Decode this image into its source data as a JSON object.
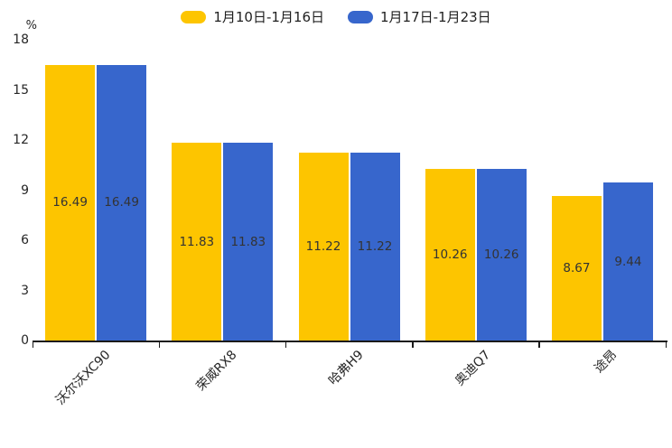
{
  "chart_data": {
    "type": "bar",
    "title": "",
    "unit_label": "%",
    "categories": [
      "沃尔沃XC90",
      "荣威RX8",
      "哈弗H9",
      "奥迪Q7",
      "途昂"
    ],
    "series": [
      {
        "name": "1月10日-1月16日",
        "color": "#FDC500",
        "values": [
          16.49,
          11.83,
          11.22,
          10.26,
          8.67
        ]
      },
      {
        "name": "1月17日-1月23日",
        "color": "#3766CC",
        "values": [
          16.49,
          11.83,
          11.22,
          10.26,
          9.44
        ]
      }
    ],
    "y_ticks": [
      0,
      3,
      6,
      9,
      12,
      15,
      18
    ],
    "ylim": [
      0,
      18
    ],
    "xlabel": "",
    "ylabel": "%",
    "grid": false,
    "legend_position": "top",
    "value_labels": "inside-center"
  },
  "colors": {
    "background": "#ffffff",
    "axis": "#1a1a1a",
    "tick_text": "#262626",
    "value_label_text": "#333333"
  }
}
